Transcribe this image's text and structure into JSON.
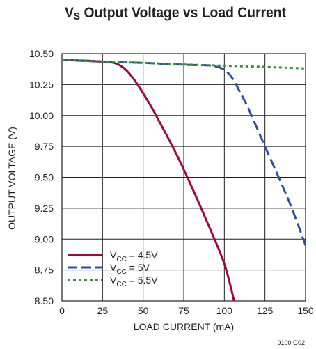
{
  "chart_data": {
    "type": "line",
    "title": {
      "main": "V",
      "sub": "S",
      "rest": " Output Voltage vs Load Current"
    },
    "xlabel": "LOAD CURRENT (mA)",
    "ylabel": "OUTPUT VOLTAGE (V)",
    "xlim": [
      0,
      150
    ],
    "ylim": [
      8.5,
      10.5
    ],
    "x_ticks": [
      "0",
      "25",
      "50",
      "75",
      "100",
      "125",
      "150"
    ],
    "y_ticks": [
      "8.50",
      "8.75",
      "9.00",
      "9.25",
      "9.50",
      "9.75",
      "10.00",
      "10.25",
      "10.50"
    ],
    "grid": true,
    "legend_position": "bottom-left",
    "series": [
      {
        "name": "VCC = 4.5V",
        "label_main": "V",
        "label_sub": "CC",
        "label_rest": " = 4.5V",
        "color": "#a0063a",
        "dash": "solid",
        "x": [
          0,
          10,
          20,
          30,
          35,
          40,
          45,
          50,
          55,
          60,
          70,
          80,
          90,
          100,
          106
        ],
        "y": [
          10.45,
          10.445,
          10.44,
          10.43,
          10.41,
          10.36,
          10.28,
          10.18,
          10.07,
          9.95,
          9.7,
          9.42,
          9.12,
          8.8,
          8.5
        ]
      },
      {
        "name": "VCC = 5V",
        "label_main": "V",
        "label_sub": "CC",
        "label_rest": " = 5V",
        "color": "#2d4f9e",
        "dash": "dashed",
        "x": [
          0,
          25,
          50,
          75,
          90,
          95,
          100,
          105,
          110,
          115,
          125,
          140,
          150
        ],
        "y": [
          10.45,
          10.435,
          10.425,
          10.41,
          10.405,
          10.395,
          10.37,
          10.3,
          10.18,
          10.05,
          9.75,
          9.3,
          8.95
        ]
      },
      {
        "name": "VCC = 5.5V",
        "label_main": "V",
        "label_sub": "CC",
        "label_rest": " = 5.5V",
        "color": "#3a8f3a",
        "dash": "dotted",
        "x": [
          0,
          25,
          50,
          75,
          100,
          125,
          150
        ],
        "y": [
          10.45,
          10.435,
          10.425,
          10.412,
          10.402,
          10.392,
          10.38
        ]
      }
    ]
  },
  "figure_id": "9100 G02"
}
